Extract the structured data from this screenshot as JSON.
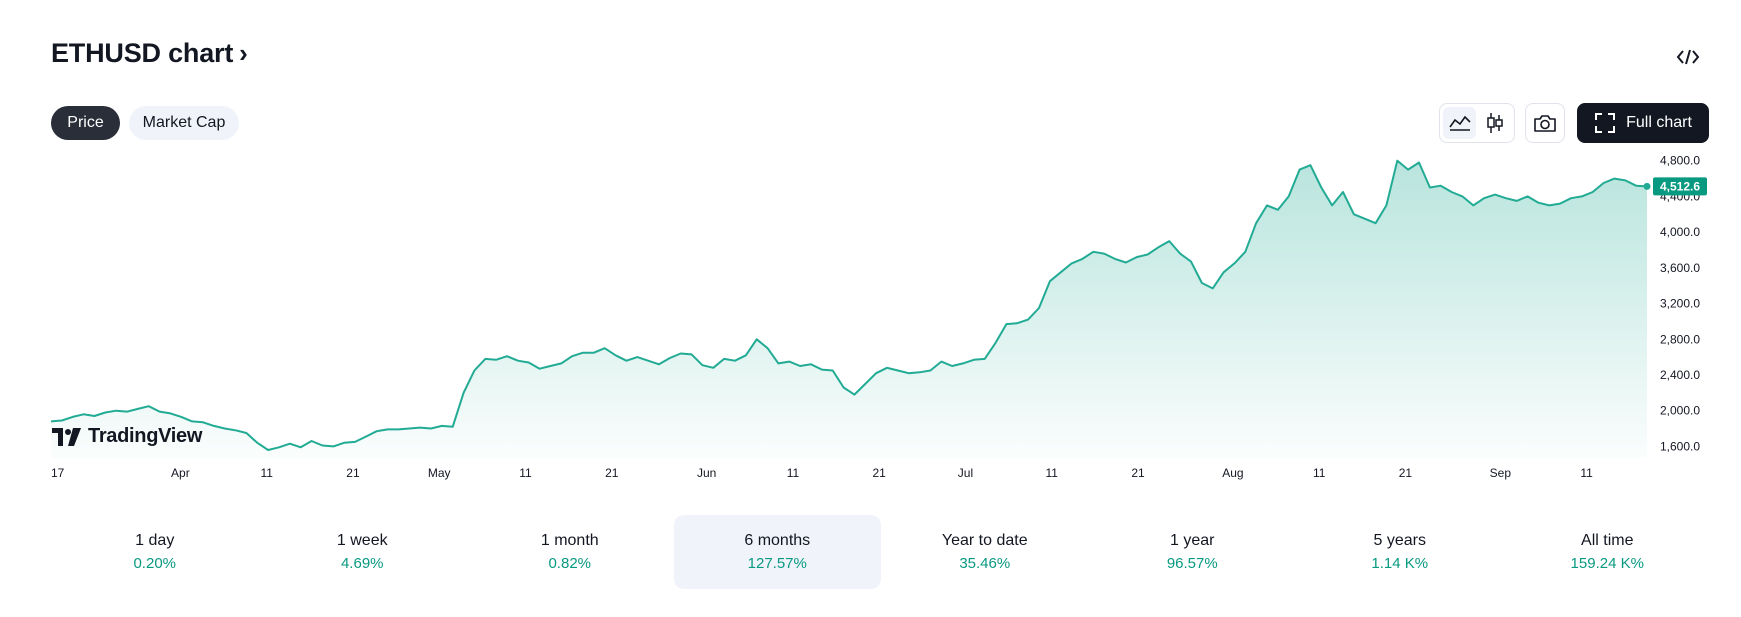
{
  "header": {
    "title": "ETHUSD chart",
    "chevron": "›",
    "embed_icon": "code-icon"
  },
  "tabs": [
    {
      "label": "Price",
      "active": true
    },
    {
      "label": "Market Cap",
      "active": false
    }
  ],
  "toolbar": {
    "area_icon": "area-chart-icon",
    "candle_icon": "candlestick-icon",
    "snapshot_icon": "camera-icon",
    "fullscreen_icon": "fullscreen-icon",
    "full_chart_label": "Full chart"
  },
  "watermark": {
    "text": "TradingView"
  },
  "colors": {
    "line": "#22ab94",
    "accent": "#089981",
    "dark": "#131722"
  },
  "chart_data": {
    "type": "area",
    "series": [
      {
        "values": [
          1880,
          1890,
          1930,
          1960,
          1940,
          1980,
          2000,
          1990,
          2020,
          2050,
          1990,
          1970,
          1930,
          1880,
          1870,
          1830,
          1800,
          1780,
          1750,
          1640,
          1560,
          1590,
          1630,
          1590,
          1660,
          1610,
          1600,
          1640,
          1650,
          1710,
          1770,
          1790,
          1790,
          1800,
          1810,
          1800,
          1830,
          1820,
          2200,
          2450,
          2580,
          2570,
          2610,
          2560,
          2540,
          2470,
          2500,
          2530,
          2610,
          2650,
          2650,
          2700,
          2620,
          2560,
          2600,
          2560,
          2520,
          2590,
          2640,
          2630,
          2510,
          2480,
          2580,
          2560,
          2620,
          2800,
          2700,
          2530,
          2550,
          2500,
          2520,
          2460,
          2450,
          2260,
          2180,
          2300,
          2420,
          2480,
          2450,
          2420,
          2430,
          2450,
          2550,
          2500,
          2530,
          2570,
          2580,
          2760,
          2970,
          2980,
          3020,
          3150,
          3450,
          3550,
          3650,
          3700,
          3780,
          3760,
          3700,
          3660,
          3720,
          3750,
          3830,
          3900,
          3760,
          3670,
          3430,
          3370,
          3550,
          3650,
          3780,
          4100,
          4300,
          4250,
          4400,
          4700,
          4750,
          4500,
          4300,
          4450,
          4200,
          4150,
          4100,
          4300,
          4800,
          4700,
          4780,
          4500,
          4520,
          4450,
          4400,
          4300,
          4380,
          4420,
          4380,
          4350,
          4400,
          4330,
          4300,
          4320,
          4380,
          4400,
          4450,
          4550,
          4600,
          4580,
          4520,
          4512.6
        ]
      }
    ],
    "x_start": "2025-03-17",
    "x_end": "2025-09-18",
    "x_ticks": [
      {
        "label": "17",
        "date": "2025-03-17"
      },
      {
        "label": "Apr",
        "date": "2025-04-01"
      },
      {
        "label": "11",
        "date": "2025-04-11"
      },
      {
        "label": "21",
        "date": "2025-04-21"
      },
      {
        "label": "May",
        "date": "2025-05-01"
      },
      {
        "label": "11",
        "date": "2025-05-11"
      },
      {
        "label": "21",
        "date": "2025-05-21"
      },
      {
        "label": "Jun",
        "date": "2025-06-01"
      },
      {
        "label": "11",
        "date": "2025-06-11"
      },
      {
        "label": "21",
        "date": "2025-06-21"
      },
      {
        "label": "Jul",
        "date": "2025-07-01"
      },
      {
        "label": "11",
        "date": "2025-07-11"
      },
      {
        "label": "21",
        "date": "2025-07-21"
      },
      {
        "label": "Aug",
        "date": "2025-08-01"
      },
      {
        "label": "11",
        "date": "2025-08-11"
      },
      {
        "label": "21",
        "date": "2025-08-21"
      },
      {
        "label": "Sep",
        "date": "2025-09-01"
      },
      {
        "label": "11",
        "date": "2025-09-11"
      }
    ],
    "y_ticks": [
      {
        "label": "4,800.0",
        "value": 4800
      },
      {
        "label": "4,400.0",
        "value": 4400
      },
      {
        "label": "4,000.0",
        "value": 4000
      },
      {
        "label": "3,600.0",
        "value": 3600
      },
      {
        "label": "3,200.0",
        "value": 3200
      },
      {
        "label": "2,800.0",
        "value": 2800
      },
      {
        "label": "2,400.0",
        "value": 2400
      },
      {
        "label": "2,000.0",
        "value": 2000
      },
      {
        "label": "1,600.0",
        "value": 1600
      }
    ],
    "ylim": [
      1470,
      4920
    ],
    "last_value": 4512.6,
    "last_label": "4,512.6",
    "grid": false
  },
  "periods": [
    {
      "label": "1 day",
      "value": "0.20%",
      "active": false
    },
    {
      "label": "1 week",
      "value": "4.69%",
      "active": false
    },
    {
      "label": "1 month",
      "value": "0.82%",
      "active": false
    },
    {
      "label": "6 months",
      "value": "127.57%",
      "active": true
    },
    {
      "label": "Year to date",
      "value": "35.46%",
      "active": false
    },
    {
      "label": "1 year",
      "value": "96.57%",
      "active": false
    },
    {
      "label": "5 years",
      "value": "1.14 K%",
      "active": false
    },
    {
      "label": "All time",
      "value": "159.24 K%",
      "active": false
    }
  ]
}
